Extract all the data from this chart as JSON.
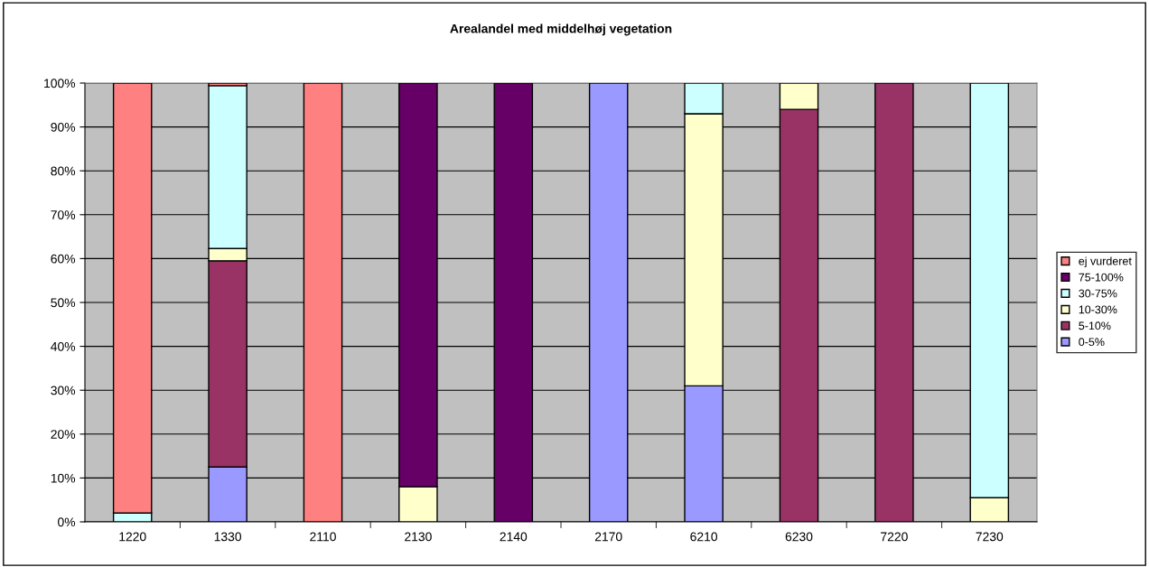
{
  "chart_data": {
    "type": "bar",
    "stacked": true,
    "title": "Arealandel med middelhøj vegetation",
    "categories": [
      "1220",
      "1330",
      "2110",
      "2130",
      "2140",
      "2170",
      "6210",
      "6230",
      "7220",
      "7230"
    ],
    "series": [
      {
        "name": "0-5%",
        "color": "#9999ff",
        "values": [
          0,
          12.5,
          0,
          0,
          0,
          100,
          31,
          0,
          0,
          0
        ]
      },
      {
        "name": "5-10%",
        "color": "#993366",
        "values": [
          0,
          47,
          0,
          0,
          0,
          0,
          0,
          94,
          100,
          0
        ]
      },
      {
        "name": "10-30%",
        "color": "#ffffcc",
        "values": [
          0,
          2.8,
          0,
          8,
          0,
          0,
          62,
          6,
          0,
          5.5
        ]
      },
      {
        "name": "30-75%",
        "color": "#ccffff",
        "values": [
          2,
          37.1,
          0,
          0,
          0,
          0,
          7,
          0,
          0,
          94.5
        ]
      },
      {
        "name": "75-100%",
        "color": "#660066",
        "values": [
          0,
          0,
          0,
          92,
          100,
          0,
          0,
          0,
          0,
          0
        ]
      },
      {
        "name": "ej vurderet",
        "color": "#ff8080",
        "values": [
          98,
          0.6,
          100,
          0,
          0,
          0,
          0,
          0,
          0,
          0
        ]
      }
    ],
    "ylim": [
      0,
      100
    ],
    "yticks": [
      {
        "value": 0,
        "label": "0%"
      },
      {
        "value": 10,
        "label": "10%"
      },
      {
        "value": 20,
        "label": "20%"
      },
      {
        "value": 30,
        "label": "30%"
      },
      {
        "value": 40,
        "label": "40%"
      },
      {
        "value": 50,
        "label": "50%"
      },
      {
        "value": 60,
        "label": "60%"
      },
      {
        "value": 70,
        "label": "70%"
      },
      {
        "value": 80,
        "label": "80%"
      },
      {
        "value": 90,
        "label": "90%"
      },
      {
        "value": 100,
        "label": "100%"
      }
    ],
    "grid": "y",
    "legend": "right"
  }
}
